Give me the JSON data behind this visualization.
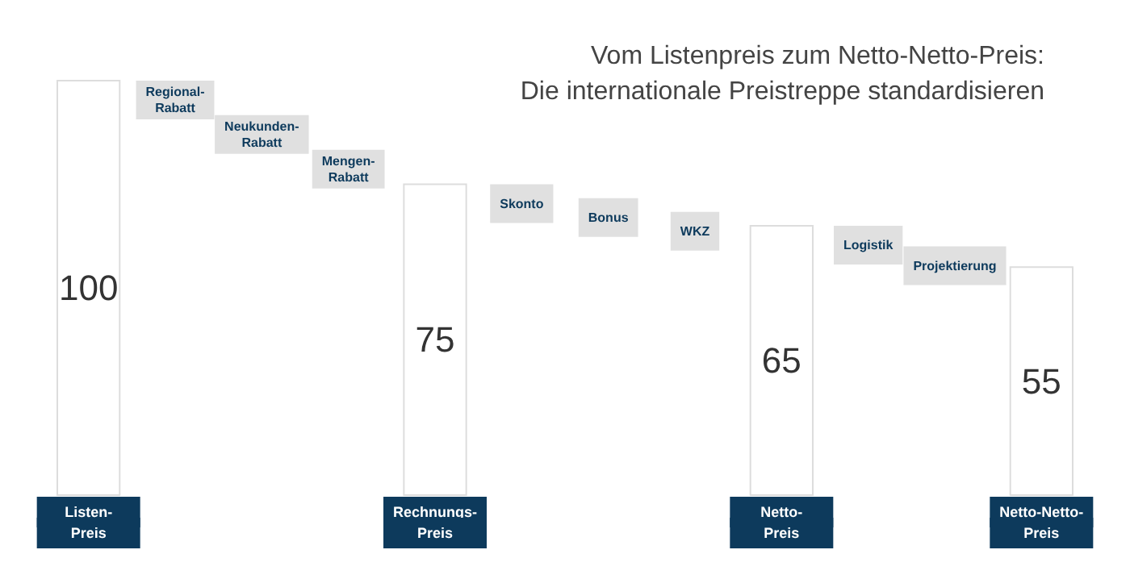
{
  "chart_data": {
    "type": "bar",
    "title": "Vom Listenpreis zum Netto-Netto-Preis:",
    "subtitle": "Die internationale Preistreppe standardisieren",
    "categories": [
      "Listen-Preis",
      "Regional-Rabatt",
      "Neukunden-Rabatt",
      "Mengen-Rabatt",
      "Rechnungs-Preis",
      "Skonto",
      "Bonus",
      "WKZ",
      "Netto-Preis",
      "Logistik",
      "Projektierung",
      "Netto-Netto-Preis"
    ],
    "values": [
      100,
      null,
      null,
      null,
      75,
      null,
      null,
      null,
      65,
      null,
      null,
      55
    ],
    "color": "#ffffff",
    "data_labels": true
  }
}
